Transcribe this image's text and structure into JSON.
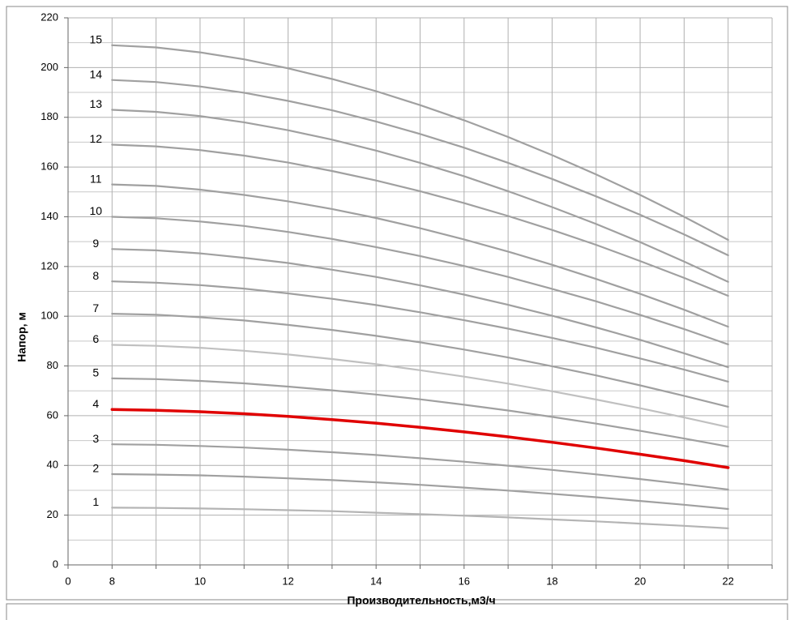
{
  "chart_data": {
    "type": "line",
    "x_label": "Производительность,м3/ч",
    "y_label": "Напор, м",
    "categories": [
      "0",
      "8",
      null,
      "10",
      null,
      "12",
      null,
      "14",
      null,
      "16",
      null,
      "18",
      null,
      "20",
      null,
      "22",
      null
    ],
    "ylim": [
      0,
      220
    ],
    "yticks": [
      0,
      20,
      40,
      60,
      80,
      100,
      120,
      140,
      160,
      180,
      200,
      220
    ],
    "y_minor_ticks": [
      10,
      30,
      50,
      70,
      90,
      110,
      130,
      150,
      170,
      190,
      210
    ],
    "grid": true,
    "series": [
      {
        "name": "1",
        "color": "#b4b4b4",
        "values": [
          null,
          23,
          22.9,
          22.7,
          22.4,
          22.0,
          21.6,
          21.0,
          20.4,
          19.8,
          19.1,
          18.3,
          17.5,
          16.6,
          15.7,
          14.7,
          null
        ]
      },
      {
        "name": "2",
        "color": "#a0a0a0",
        "values": [
          null,
          36.5,
          36.3,
          36.0,
          35.5,
          34.8,
          34.1,
          33.2,
          32.2,
          31.1,
          29.9,
          28.6,
          27.2,
          25.7,
          24.2,
          22.5,
          null
        ]
      },
      {
        "name": "3",
        "color": "#a0a0a0",
        "values": [
          null,
          48.5,
          48.3,
          47.8,
          47.2,
          46.3,
          45.3,
          44.2,
          42.9,
          41.5,
          39.9,
          38.2,
          36.4,
          34.5,
          32.5,
          30.3,
          null
        ]
      },
      {
        "name": "4",
        "color": "#e00000",
        "values": [
          null,
          62.5,
          62.2,
          61.6,
          60.8,
          59.7,
          58.4,
          57.0,
          55.3,
          53.5,
          51.5,
          49.3,
          47.0,
          44.5,
          41.9,
          39.1,
          null
        ]
      },
      {
        "name": "5",
        "color": "#a0a0a0",
        "values": [
          null,
          75,
          74.7,
          74.0,
          73.0,
          71.7,
          70.2,
          68.5,
          66.6,
          64.4,
          62.1,
          59.5,
          56.8,
          53.9,
          50.8,
          47.6,
          null
        ]
      },
      {
        "name": "6",
        "color": "#c0c0c0",
        "values": [
          null,
          88.5,
          88.1,
          87.3,
          86.1,
          84.6,
          82.8,
          80.7,
          78.3,
          75.7,
          72.9,
          69.8,
          66.5,
          63.0,
          59.3,
          55.4,
          null
        ]
      },
      {
        "name": "7",
        "color": "#a0a0a0",
        "values": [
          null,
          101,
          100.6,
          99.6,
          98.3,
          96.5,
          94.5,
          92.1,
          89.5,
          86.6,
          83.4,
          79.9,
          76.2,
          72.2,
          68.0,
          63.6,
          null
        ]
      },
      {
        "name": "8",
        "color": "#a0a0a0",
        "values": [
          null,
          114,
          113.5,
          112.5,
          111.1,
          109.2,
          107.0,
          104.5,
          101.6,
          98.4,
          95.0,
          91.3,
          87.3,
          83.0,
          78.5,
          73.7,
          null
        ]
      },
      {
        "name": "9",
        "color": "#a0a0a0",
        "values": [
          null,
          127,
          126.5,
          125.3,
          123.5,
          121.4,
          118.7,
          115.8,
          112.4,
          108.7,
          104.6,
          100.2,
          95.5,
          90.5,
          85.1,
          79.5,
          null
        ]
      },
      {
        "name": "10",
        "color": "#a0a0a0",
        "values": [
          null,
          140,
          139.4,
          138.1,
          136.3,
          133.9,
          131.1,
          127.8,
          124.2,
          120.2,
          115.8,
          111.0,
          106.0,
          100.5,
          94.8,
          88.7,
          null
        ]
      },
      {
        "name": "11",
        "color": "#a0a0a0",
        "values": [
          null,
          153,
          152.4,
          150.9,
          148.8,
          146.2,
          143.1,
          139.5,
          135.4,
          130.9,
          126.0,
          120.7,
          115.0,
          109.0,
          102.6,
          95.8,
          null
        ]
      },
      {
        "name": "12",
        "color": "#a0a0a0",
        "values": [
          null,
          169,
          168.3,
          166.8,
          164.6,
          161.8,
          158.4,
          154.6,
          150.3,
          145.5,
          140.3,
          134.7,
          128.7,
          122.2,
          115.4,
          108.2,
          null
        ]
      },
      {
        "name": "13",
        "color": "#a0a0a0",
        "values": [
          null,
          183,
          182.2,
          180.5,
          178.0,
          174.8,
          171.0,
          166.6,
          161.7,
          156.3,
          150.3,
          143.9,
          137.1,
          129.8,
          122.0,
          113.8,
          null
        ]
      },
      {
        "name": "14",
        "color": "#a0a0a0",
        "values": [
          null,
          195,
          194.2,
          192.4,
          189.9,
          186.6,
          182.8,
          178.3,
          173.3,
          167.8,
          161.7,
          155.2,
          148.2,
          140.8,
          132.9,
          124.5,
          null
        ]
      },
      {
        "name": "15",
        "color": "#a0a0a0",
        "values": [
          null,
          209,
          208.1,
          206.1,
          203.3,
          199.7,
          195.4,
          190.5,
          184.9,
          178.8,
          172.1,
          164.8,
          157.0,
          148.8,
          140.0,
          130.7,
          null
        ]
      }
    ]
  }
}
